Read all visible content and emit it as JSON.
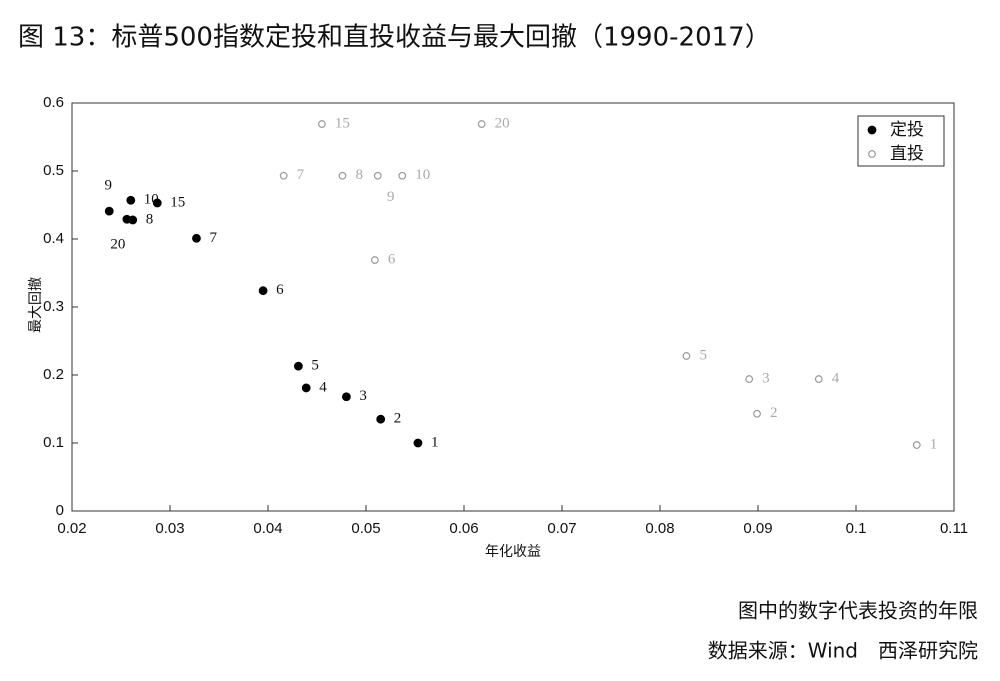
{
  "chart_data": {
    "type": "scatter",
    "title": "图 13：标普500指数定投和直投收益与最大回撤（1990-2017）",
    "xlabel": "年化收益",
    "ylabel": "最大回撤",
    "note": "图中的数字代表投资的年限",
    "source": "数据来源：Wind　西泽研究院",
    "xlim": [
      0.02,
      0.11
    ],
    "xticks": [
      0.02,
      0.03,
      0.04,
      0.05,
      0.06,
      0.07,
      0.08,
      0.09,
      0.1,
      0.11
    ],
    "ylim": [
      0,
      0.6
    ],
    "yticks": [
      0,
      0.1,
      0.2,
      0.3,
      0.4,
      0.5,
      0.6
    ],
    "legend": "upper right",
    "series": [
      {
        "name": "定投",
        "color": "#000000",
        "filled": true,
        "x": [
          0.0553,
          0.0515,
          0.048,
          0.0439,
          0.0431,
          0.0395,
          0.0327,
          0.0262,
          0.0238,
          0.026,
          0.0287,
          0.0256
        ],
        "values": [
          0.1,
          0.135,
          0.168,
          0.181,
          0.213,
          0.324,
          0.401,
          0.428,
          0.441,
          0.457,
          0.453,
          0.429
        ],
        "point_labels": [
          "1",
          "2",
          "3",
          "4",
          "5",
          "6",
          "7",
          "8",
          "9",
          "10",
          "15",
          "20"
        ]
      },
      {
        "name": "直投",
        "color": "#999999",
        "filled": false,
        "x": [
          0.1062,
          0.0899,
          0.0891,
          0.0962,
          0.0827,
          0.0509,
          0.0416,
          0.0476,
          0.0512,
          0.0537,
          0.0455,
          0.0618
        ],
        "values": [
          0.097,
          0.143,
          0.194,
          0.194,
          0.228,
          0.369,
          0.493,
          0.493,
          0.493,
          0.493,
          0.569,
          0.569
        ],
        "point_labels": [
          "1",
          "2",
          "3",
          "4",
          "5",
          "6",
          "7",
          "8",
          "9",
          "10",
          "15",
          "20"
        ]
      }
    ]
  }
}
